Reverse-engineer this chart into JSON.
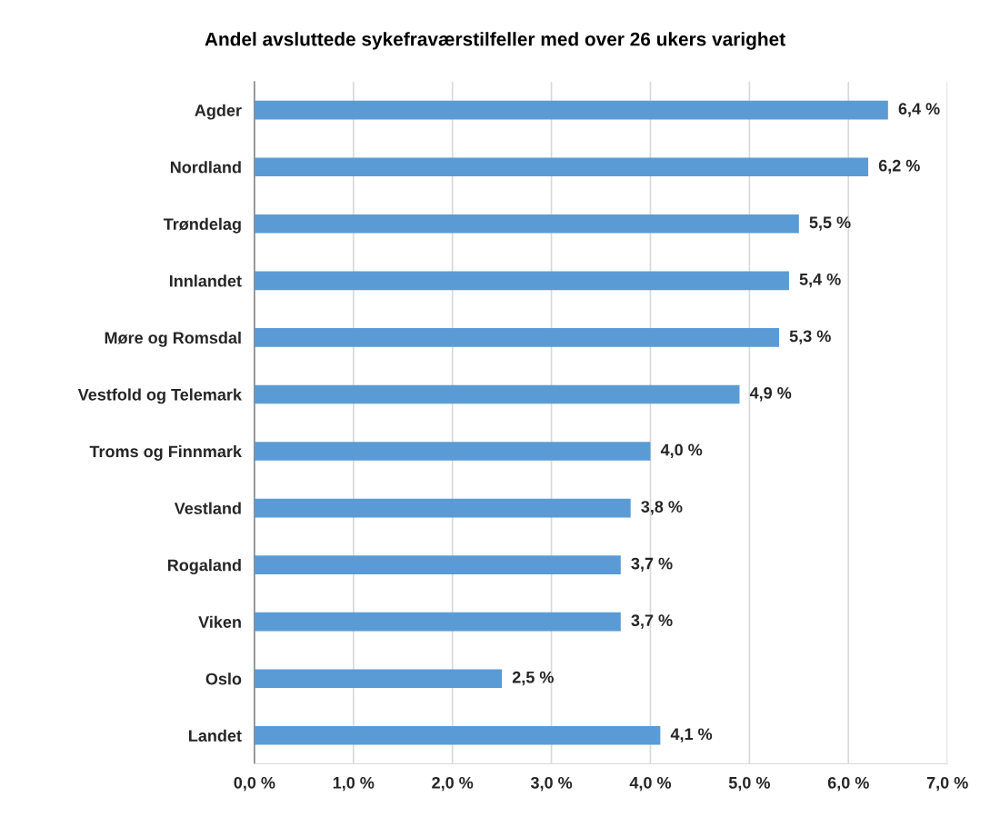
{
  "chart_data": {
    "type": "bar",
    "orientation": "horizontal",
    "title": "Andel avsluttede sykefraværstilfeller med over 26 ukers varighet",
    "categories": [
      "Agder",
      "Nordland",
      "Trøndelag",
      "Innlandet",
      "Møre og Romsdal",
      "Vestfold og Telemark",
      "Troms og Finnmark",
      "Vestland",
      "Rogaland",
      "Viken",
      "Oslo",
      "Landet"
    ],
    "values": [
      6.4,
      6.2,
      5.5,
      5.4,
      5.3,
      4.9,
      4.0,
      3.8,
      3.7,
      3.7,
      2.5,
      4.1
    ],
    "value_labels": [
      "6,4 %",
      "6,2 %",
      "5,5 %",
      "5,4 %",
      "5,3 %",
      "4,9 %",
      "4,0 %",
      "3,8 %",
      "3,7 %",
      "3,7 %",
      "2,5 %",
      "4,1 %"
    ],
    "color": "#5b9bd5",
    "xlim": [
      0,
      7
    ],
    "xticks": [
      {
        "value": 0,
        "label": "0,0 %"
      },
      {
        "value": 1,
        "label": "1,0 %"
      },
      {
        "value": 2,
        "label": "2,0 %"
      },
      {
        "value": 3,
        "label": "3,0 %"
      },
      {
        "value": 4,
        "label": "4,0 %"
      },
      {
        "value": 5,
        "label": "5,0 %"
      },
      {
        "value": 6,
        "label": "6,0 %"
      },
      {
        "value": 7,
        "label": "7,0 %"
      }
    ],
    "grid": "x"
  }
}
